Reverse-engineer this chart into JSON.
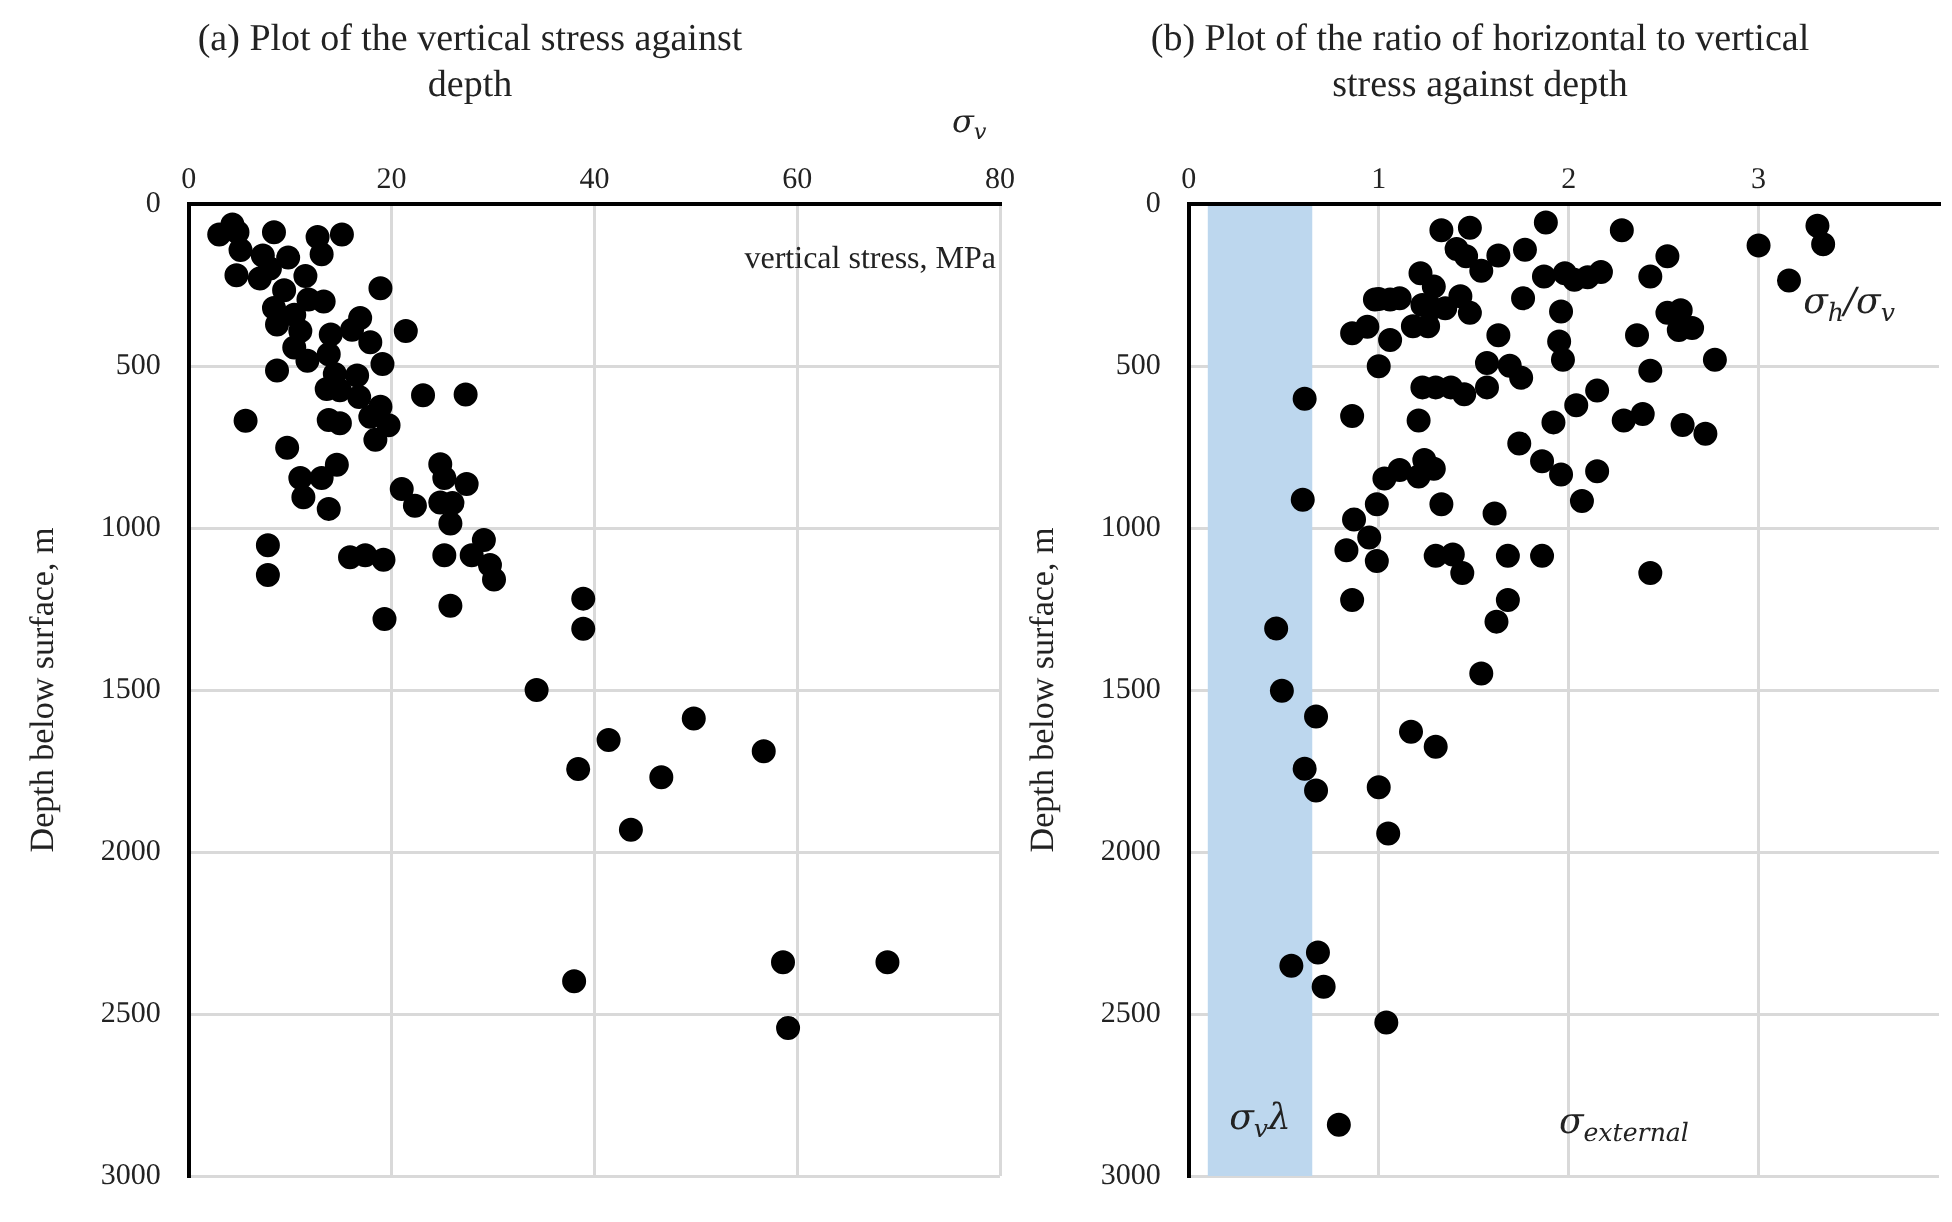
{
  "chart_data": [
    {
      "type": "scatter",
      "title": "(a) Plot of the vertical stress against depth",
      "xlabel": "σ$_{v}$",
      "ylabel": "Depth below surface, m",
      "annotations": [
        "vertical stress, MPa"
      ],
      "x": [
        3.0,
        4.3,
        4.8,
        5.1,
        4.7,
        8.4,
        12.7,
        15.1,
        13.1,
        11.5,
        7.3,
        8.0,
        9.8,
        7.0,
        9.4,
        18.9,
        8.4,
        10.4,
        11.8,
        13.3,
        8.7,
        11.0,
        14.0,
        16.9,
        16.1,
        21.4,
        17.9,
        10.4,
        11.7,
        13.8,
        19.1,
        8.7,
        14.4,
        16.6,
        13.6,
        14.9,
        16.8,
        23.1,
        27.3,
        18.9,
        17.9,
        19.7,
        13.8,
        14.9,
        5.6,
        18.4,
        9.7,
        14.6,
        24.8,
        25.2,
        27.4,
        11.0,
        13.1,
        11.3,
        13.8,
        21.0,
        22.3,
        24.8,
        26.0,
        25.8,
        29.1,
        27.9,
        29.7,
        30.1,
        25.2,
        15.9,
        17.4,
        19.2,
        7.8,
        7.8,
        25.8,
        19.3,
        38.9,
        38.9,
        34.3,
        49.8,
        41.4,
        56.7,
        38.4,
        46.6,
        43.6,
        38.0,
        58.6,
        68.9,
        59.1
      ],
      "values": [
        94,
        63,
        87,
        142,
        220,
        87,
        102,
        94,
        155,
        222,
        159,
        199,
        165,
        230,
        266,
        260,
        321,
        342,
        295,
        301,
        372,
        392,
        403,
        352,
        388,
        392,
        427,
        443,
        484,
        464,
        494,
        514,
        525,
        529,
        571,
        575,
        596,
        590,
        588,
        626,
        657,
        683,
        667,
        677,
        669,
        728,
        752,
        805,
        803,
        846,
        864,
        846,
        846,
        905,
        941,
        880,
        931,
        921,
        923,
        986,
        1037,
        1084,
        1114,
        1159,
        1084,
        1090,
        1084,
        1098,
        1053,
        1145,
        1240,
        1281,
        1218,
        1311,
        1500,
        1588,
        1654,
        1689,
        1744,
        1769,
        1931,
        2399,
        2340,
        2340,
        2543
      ],
      "color": "#000000",
      "marker": "circle",
      "xlim": [
        0,
        80
      ],
      "xticks": [
        0,
        20,
        40,
        60,
        80
      ],
      "ylim": [
        3000,
        0
      ],
      "yticks": [
        0,
        500,
        1000,
        1500,
        2000,
        2500,
        3000
      ],
      "grid": true,
      "legend": false
    },
    {
      "type": "scatter",
      "title": "(b) Plot of the ratio of horizontal to vertical stress against depth",
      "xlabel": "σ$_{h}$/σ$_{v}$",
      "ylabel": "Depth below surface, m",
      "annotations": [
        "σ$_{external}$"
      ],
      "bands": [
        {
          "axis": "x",
          "from": 0.1,
          "to": 0.65,
          "label": "σ$_{v}$λ",
          "color": "#bdd7ee"
        }
      ],
      "x": [
        1.33,
        1.48,
        1.88,
        2.28,
        3.31,
        3.34,
        3.0,
        3.16,
        1.41,
        1.46,
        1.63,
        1.77,
        1.54,
        2.52,
        1.22,
        1.29,
        1.87,
        1.98,
        2.03,
        2.1,
        2.17,
        2.43,
        1.0,
        1.06,
        1.11,
        0.98,
        1.23,
        1.28,
        1.35,
        1.43,
        1.48,
        1.76,
        1.96,
        2.52,
        2.59,
        2.58,
        2.65,
        0.86,
        0.94,
        1.06,
        1.18,
        1.26,
        1.63,
        1.95,
        1.97,
        2.36,
        2.77,
        1.0,
        1.57,
        1.69,
        1.75,
        2.43,
        1.23,
        1.3,
        1.38,
        1.45,
        1.57,
        0.61,
        0.86,
        1.21,
        2.04,
        2.15,
        1.92,
        2.29,
        2.39,
        2.6,
        2.72,
        1.74,
        1.86,
        1.96,
        2.15,
        2.07,
        1.03,
        1.11,
        1.21,
        1.24,
        1.29,
        0.6,
        0.99,
        1.33,
        1.61,
        0.87,
        0.95,
        0.83,
        0.99,
        1.3,
        1.39,
        1.44,
        1.68,
        1.86,
        2.43,
        0.86,
        1.68,
        1.62,
        0.46,
        1.54,
        0.49,
        0.67,
        1.17,
        1.3,
        0.61,
        0.67,
        1.0,
        1.05,
        0.68,
        0.54,
        0.71,
        1.04,
        0.79
      ],
      "values": [
        81,
        73,
        57,
        81,
        67,
        124,
        128,
        236,
        139,
        161,
        159,
        141,
        206,
        161,
        214,
        255,
        224,
        214,
        234,
        226,
        210,
        224,
        293,
        295,
        291,
        295,
        312,
        322,
        322,
        285,
        336,
        291,
        332,
        336,
        328,
        389,
        383,
        399,
        379,
        420,
        377,
        377,
        405,
        424,
        481,
        405,
        481,
        501,
        491,
        499,
        536,
        515,
        566,
        566,
        566,
        587,
        566,
        601,
        654,
        668,
        621,
        576,
        674,
        668,
        648,
        682,
        709,
        739,
        794,
        835,
        825,
        917,
        847,
        821,
        841,
        790,
        817,
        913,
        927,
        927,
        955,
        974,
        1029,
        1069,
        1102,
        1086,
        1082,
        1139,
        1086,
        1086,
        1139,
        1222,
        1222,
        1289,
        1310,
        1449,
        1502,
        1582,
        1629,
        1675,
        1743,
        1810,
        1800,
        1943,
        2310,
        2351,
        2416,
        2526,
        2842
      ],
      "color": "#000000",
      "marker": "circle",
      "xlim": [
        0,
        3.95
      ],
      "xticks": [
        0,
        1,
        2,
        3
      ],
      "ylim": [
        3000,
        0
      ],
      "yticks": [
        0,
        500,
        1000,
        1500,
        2000,
        2500,
        3000
      ],
      "grid": true,
      "legend": false
    }
  ]
}
